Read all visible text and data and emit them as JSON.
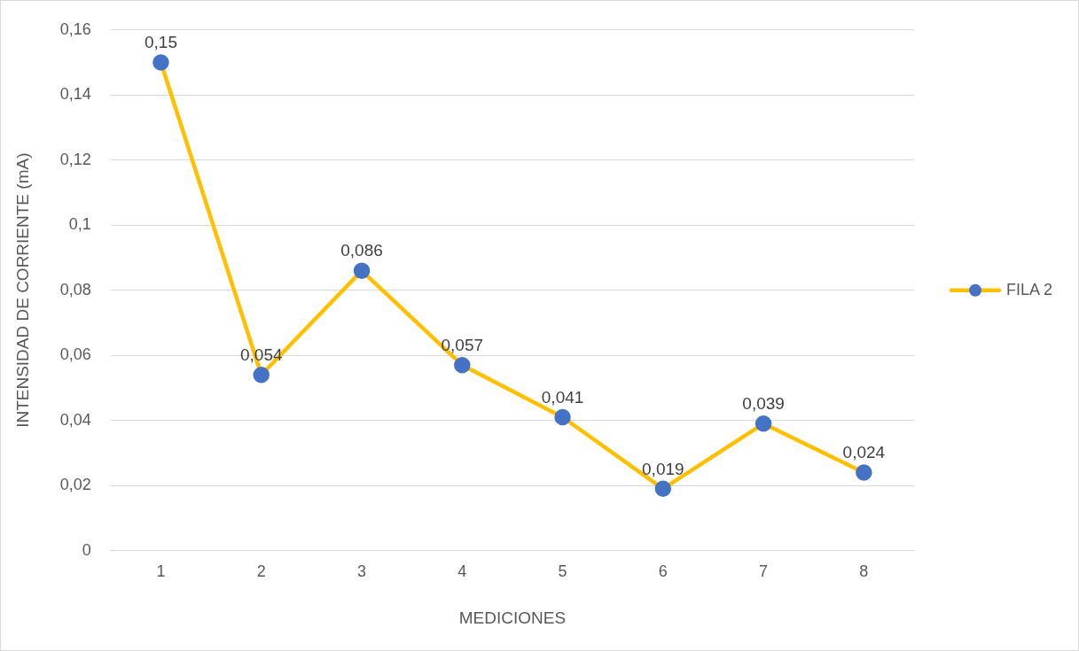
{
  "chart_data": {
    "type": "line",
    "xlabel": "MEDICIONES",
    "ylabel": "INTENSIDAD DE CORRIENTE (mA)",
    "categories": [
      "1",
      "2",
      "3",
      "4",
      "5",
      "6",
      "7",
      "8"
    ],
    "series": [
      {
        "name": "FILA 2",
        "color": "#ffc000",
        "colors": [
          "#4472c4",
          "#4472c4",
          "#4472c4",
          "#4472c4",
          "#4472c4",
          "#4472c4",
          "#4472c4",
          "#4472c4"
        ],
        "values": [
          0.15,
          0.054,
          0.086,
          0.057,
          0.041,
          0.019,
          0.039,
          0.024
        ],
        "value_labels": [
          "0,15",
          "0,054",
          "0,086",
          "0,057",
          "0,041",
          "0,019",
          "0,039",
          "0,024"
        ]
      }
    ],
    "ylim": [
      0,
      0.16
    ],
    "yticks": [
      {
        "value": 0,
        "label": "0"
      },
      {
        "value": 0.02,
        "label": "0,02"
      },
      {
        "value": 0.04,
        "label": "0,04"
      },
      {
        "value": 0.06,
        "label": "0,06"
      },
      {
        "value": 0.08,
        "label": "0,08"
      },
      {
        "value": 0.1,
        "label": "0,1"
      },
      {
        "value": 0.12,
        "label": "0,12"
      },
      {
        "value": 0.14,
        "label": "0,14"
      },
      {
        "value": 0.16,
        "label": "0,16"
      }
    ],
    "grid": "y",
    "legend": "right",
    "marker": "circle",
    "line_style": "solid"
  }
}
